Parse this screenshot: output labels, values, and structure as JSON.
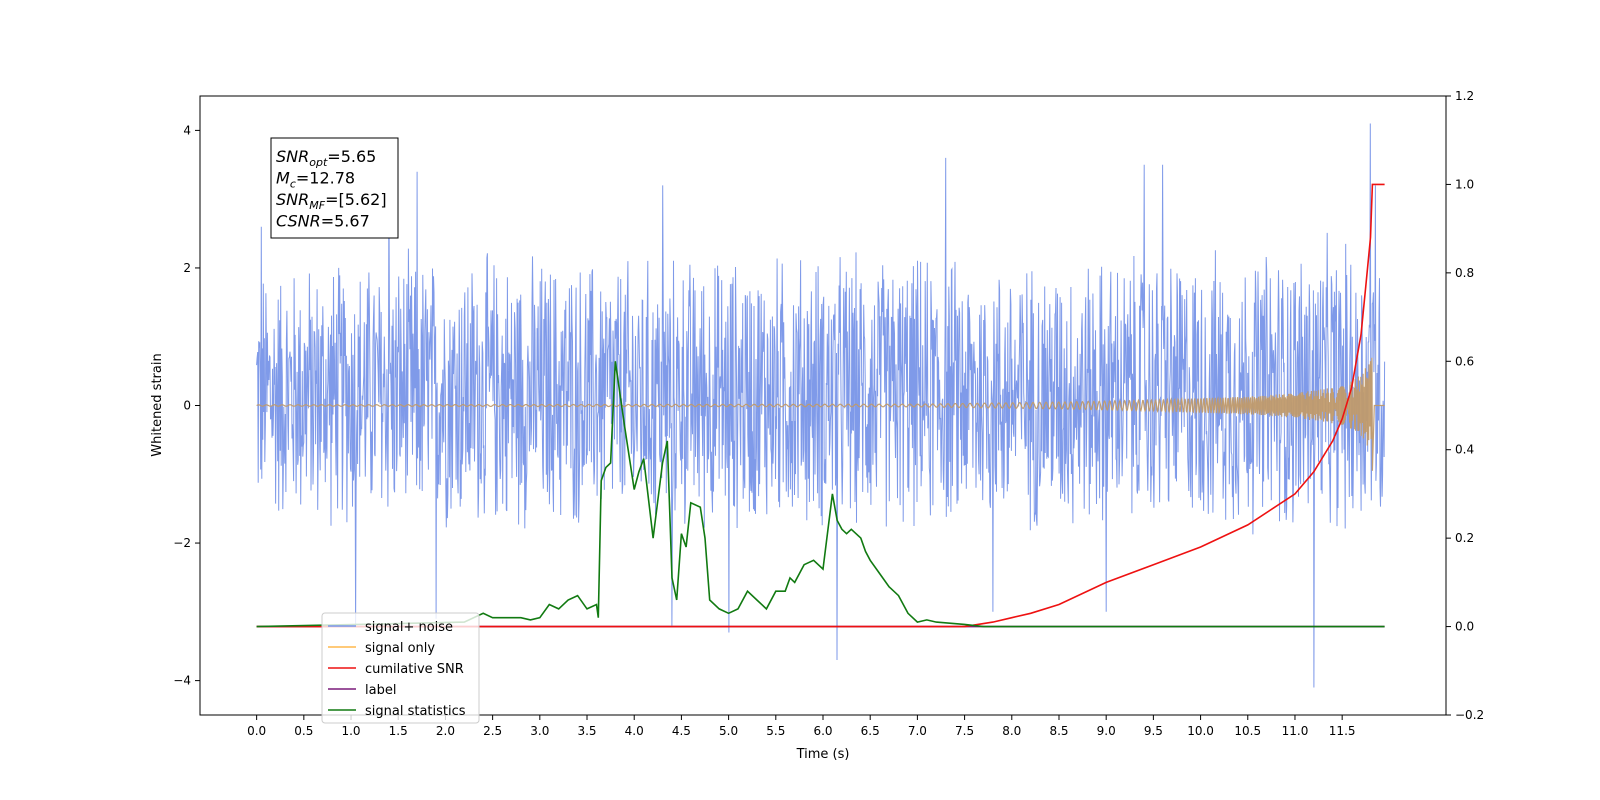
{
  "chart_data": {
    "type": "line",
    "title": "",
    "xlabel": "Time (s)",
    "ylabel": "Whitened strain",
    "y2label": "",
    "xlim": [
      -0.6,
      12.6
    ],
    "ylim": [
      -4.5,
      4.5
    ],
    "y2lim": [
      -0.2,
      1.2
    ],
    "xticks": [
      0.0,
      0.5,
      1.0,
      1.5,
      2.0,
      2.5,
      3.0,
      3.5,
      4.0,
      4.5,
      5.0,
      5.5,
      6.0,
      6.5,
      7.0,
      7.5,
      8.0,
      8.5,
      9.0,
      9.5,
      10.0,
      10.5,
      11.0,
      11.5
    ],
    "xtick_labels": [
      "0.0",
      "0.5",
      "1.0",
      "1.5",
      "2.0",
      "2.5",
      "3.0",
      "3.5",
      "4.0",
      "4.5",
      "5.0",
      "5.5",
      "6.0",
      "6.5",
      "7.0",
      "7.5",
      "8.0",
      "8.5",
      "9.0",
      "9.5",
      "10.0",
      "10.5",
      "11.0",
      "11.5"
    ],
    "yticks": [
      -4,
      -2,
      0,
      2,
      4
    ],
    "ytick_labels": [
      "−4",
      "−2",
      "0",
      "2",
      "4"
    ],
    "y2ticks": [
      -0.2,
      0.0,
      0.2,
      0.4,
      0.6,
      0.8,
      1.0,
      1.2
    ],
    "y2tick_labels": [
      "−0.2",
      "0.0",
      "0.2",
      "0.4",
      "0.6",
      "0.8",
      "1.0",
      "1.2"
    ],
    "grid": false,
    "legend_position": "lower-left",
    "annotation_lines": [
      {
        "sym": "SNR",
        "sub": "opt",
        "rest": "=5.65"
      },
      {
        "sym": "M",
        "sub": "c",
        "rest": "=12.78"
      },
      {
        "sym": "SNR",
        "sub": "MF",
        "rest": "=[5.62]"
      },
      {
        "sym": "CSNR",
        "sub": "",
        "rest": "=5.67"
      }
    ],
    "series": [
      {
        "name": "signal+ noise",
        "axis": "left",
        "color": "#7895e8",
        "description": "noise-dominated trace between about -2 and +2 with peaks up to 4.1 near t=11.8 and dip to -4.1 near t=11.2",
        "envelope_x": [
          0.0,
          2.0,
          4.0,
          6.0,
          8.0,
          10.0,
          11.5,
          11.9
        ],
        "envelope_upper": [
          2.2,
          2.4,
          2.3,
          2.4,
          2.3,
          2.4,
          2.6,
          2.4
        ],
        "envelope_lower": [
          -1.9,
          -2.0,
          -2.0,
          -2.0,
          -2.0,
          -2.0,
          -2.1,
          -2.0
        ],
        "peaks": [
          [
            0.05,
            2.6
          ],
          [
            1.4,
            3.3
          ],
          [
            1.7,
            3.4
          ],
          [
            4.3,
            3.2
          ],
          [
            7.3,
            3.6
          ],
          [
            9.4,
            3.5
          ],
          [
            9.6,
            3.5
          ],
          [
            11.8,
            4.1
          ],
          [
            11.85,
            3.2
          ]
        ],
        "dips": [
          [
            1.05,
            -3.2
          ],
          [
            1.9,
            -3.1
          ],
          [
            4.4,
            -3.2
          ],
          [
            5.0,
            -3.3
          ],
          [
            6.15,
            -3.7
          ],
          [
            7.8,
            -3.0
          ],
          [
            9.0,
            -3.0
          ],
          [
            11.2,
            -4.1
          ]
        ]
      },
      {
        "name": "signal only",
        "axis": "left",
        "color": "#ffb84d",
        "description": "chirp, flat near 0 then amplitude growing to about 0.8 at t=11.8",
        "envelope_x": [
          0.0,
          7.0,
          8.5,
          9.5,
          10.5,
          11.0,
          11.4,
          11.6,
          11.7,
          11.8,
          11.82
        ],
        "envelope": [
          0.01,
          0.02,
          0.05,
          0.08,
          0.13,
          0.18,
          0.26,
          0.35,
          0.45,
          0.65,
          0.8
        ]
      },
      {
        "name": "cumilative SNR",
        "axis": "right",
        "x": [
          0.0,
          7.5,
          7.8,
          8.0,
          8.2,
          8.5,
          9.0,
          9.5,
          10.0,
          10.5,
          11.0,
          11.2,
          11.4,
          11.5,
          11.6,
          11.7,
          11.75,
          11.8,
          11.82,
          11.95
        ],
        "y": [
          0.0,
          0.0,
          0.01,
          0.02,
          0.03,
          0.05,
          0.1,
          0.14,
          0.18,
          0.23,
          0.3,
          0.35,
          0.42,
          0.47,
          0.54,
          0.66,
          0.77,
          0.88,
          1.0,
          1.0
        ]
      },
      {
        "name": "label",
        "axis": "right",
        "x": [
          0.0,
          11.95
        ],
        "y": [
          0.0,
          0.0
        ]
      },
      {
        "name": "signal statistics",
        "axis": "right",
        "x": [
          0.0,
          2.2,
          2.4,
          2.5,
          2.6,
          2.7,
          2.8,
          2.9,
          3.0,
          3.1,
          3.2,
          3.3,
          3.4,
          3.5,
          3.6,
          3.62,
          3.65,
          3.7,
          3.75,
          3.8,
          3.9,
          4.0,
          4.05,
          4.1,
          4.2,
          4.3,
          4.35,
          4.4,
          4.45,
          4.5,
          4.55,
          4.6,
          4.7,
          4.75,
          4.8,
          4.9,
          5.0,
          5.1,
          5.2,
          5.3,
          5.4,
          5.5,
          5.6,
          5.65,
          5.7,
          5.8,
          5.9,
          6.0,
          6.1,
          6.15,
          6.2,
          6.25,
          6.3,
          6.4,
          6.45,
          6.5,
          6.6,
          6.7,
          6.8,
          6.9,
          7.0,
          7.1,
          7.2,
          7.5,
          7.7,
          8.0,
          8.5,
          9.0,
          11.95
        ],
        "y": [
          0.0,
          0.01,
          0.03,
          0.02,
          0.02,
          0.02,
          0.02,
          0.015,
          0.02,
          0.05,
          0.04,
          0.06,
          0.07,
          0.04,
          0.05,
          0.02,
          0.33,
          0.36,
          0.37,
          0.6,
          0.45,
          0.31,
          0.35,
          0.38,
          0.2,
          0.37,
          0.42,
          0.11,
          0.06,
          0.21,
          0.18,
          0.28,
          0.27,
          0.2,
          0.06,
          0.04,
          0.03,
          0.04,
          0.08,
          0.06,
          0.04,
          0.08,
          0.08,
          0.11,
          0.1,
          0.14,
          0.15,
          0.13,
          0.3,
          0.24,
          0.22,
          0.21,
          0.22,
          0.2,
          0.17,
          0.15,
          0.12,
          0.09,
          0.07,
          0.03,
          0.01,
          0.015,
          0.01,
          0.005,
          0.0,
          0.0,
          0.0,
          0.0,
          0.0
        ]
      }
    ]
  }
}
